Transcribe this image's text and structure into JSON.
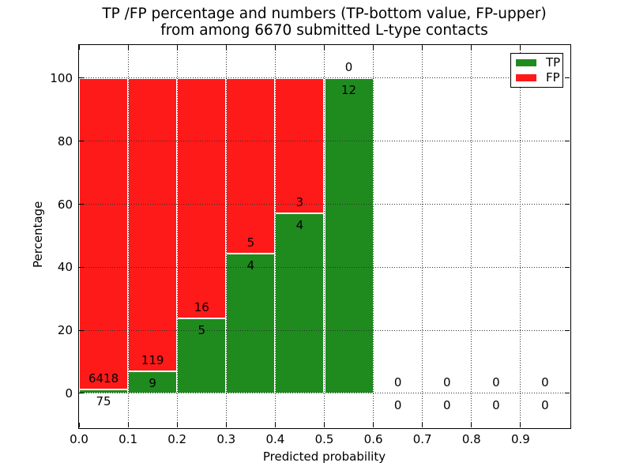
{
  "chart_data": {
    "type": "bar",
    "subtype": "stacked-percentage-histogram",
    "title_line1": "TP /FP percentage and numbers (TP-bottom value, FP-upper)",
    "title_line2": "from among 6670 submitted L-type contacts",
    "xlabel": "Predicted probability",
    "ylabel": "Percentage",
    "xlim": [
      0.0,
      1.0
    ],
    "ylim": [
      -10.8,
      110.5
    ],
    "xticks": {
      "values": [
        0.0,
        0.1,
        0.2,
        0.3,
        0.4,
        0.5,
        0.6,
        0.7,
        0.8,
        0.9
      ],
      "labels": [
        "0.0",
        "0.1",
        "0.2",
        "0.3",
        "0.4",
        "0.5",
        "0.6",
        "0.7",
        "0.8",
        "0.9"
      ]
    },
    "yticks": {
      "values": [
        0,
        20,
        40,
        60,
        80,
        100
      ],
      "labels": [
        "0",
        "20",
        "40",
        "60",
        "80",
        "100"
      ]
    },
    "grid": {
      "style": "dotted",
      "axes": "both",
      "drawn_over_bars": true
    },
    "legend": {
      "position": "upper-right",
      "items": [
        {
          "label": "TP",
          "color": "#1f8b1f"
        },
        {
          "label": "FP",
          "color": "#ff1a1a"
        }
      ]
    },
    "bins": [
      {
        "x_start": 0.0,
        "x_end": 0.1,
        "tp": 75,
        "fp": 6418
      },
      {
        "x_start": 0.1,
        "x_end": 0.2,
        "tp": 9,
        "fp": 119
      },
      {
        "x_start": 0.2,
        "x_end": 0.3,
        "tp": 5,
        "fp": 16
      },
      {
        "x_start": 0.3,
        "x_end": 0.4,
        "tp": 4,
        "fp": 5
      },
      {
        "x_start": 0.4,
        "x_end": 0.5,
        "tp": 4,
        "fp": 3
      },
      {
        "x_start": 0.5,
        "x_end": 0.6,
        "tp": 12,
        "fp": 0
      },
      {
        "x_start": 0.6,
        "x_end": 0.7,
        "tp": 0,
        "fp": 0
      },
      {
        "x_start": 0.7,
        "x_end": 0.8,
        "tp": 0,
        "fp": 0
      },
      {
        "x_start": 0.8,
        "x_end": 0.9,
        "tp": 0,
        "fp": 0
      },
      {
        "x_start": 0.9,
        "x_end": 1.0,
        "tp": 0,
        "fp": 0
      }
    ],
    "annotation_rule": "per bin: FP count printed above TP/FP boundary, TP count printed below"
  }
}
